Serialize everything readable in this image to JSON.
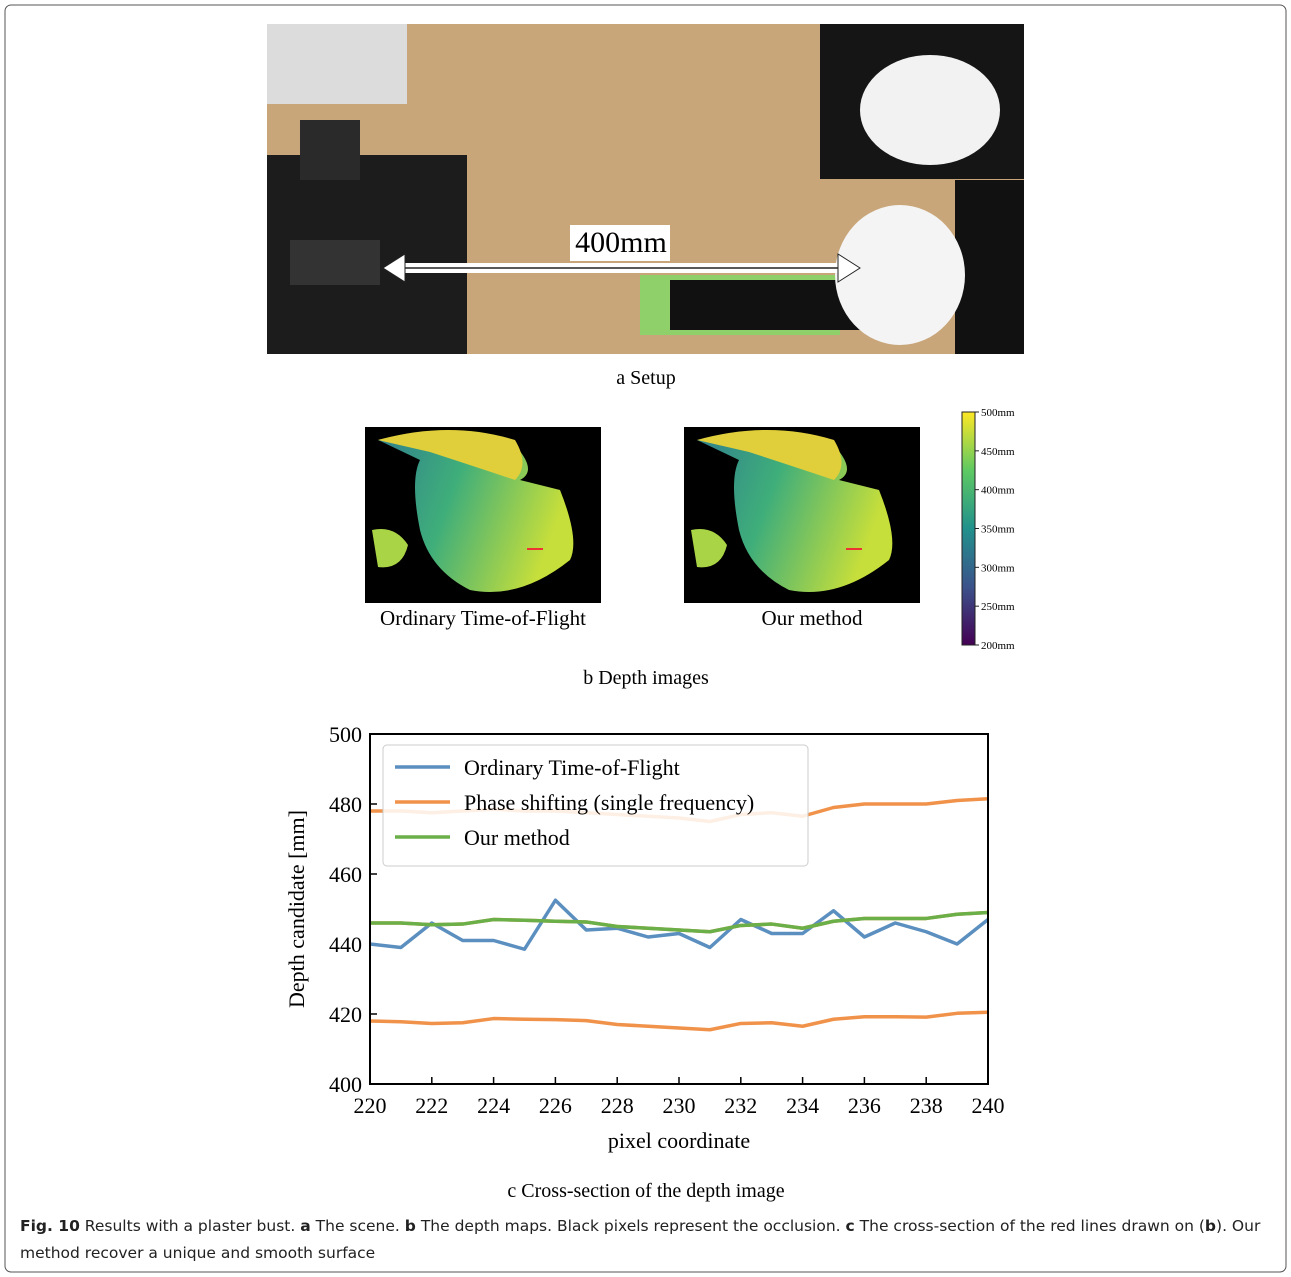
{
  "setup": {
    "distance_label": "400mm",
    "caption": "a Setup"
  },
  "depth_images": {
    "labels": [
      "Ordinary Time-of-Flight",
      "Our method"
    ],
    "caption": "b Depth images",
    "colorbar": {
      "lim": [
        200,
        500
      ],
      "ticks": [
        {
          "value": 200,
          "label": "200mm"
        },
        {
          "value": 250,
          "label": "250mm"
        },
        {
          "value": 300,
          "label": "300mm"
        },
        {
          "value": 350,
          "label": "350mm"
        },
        {
          "value": 400,
          "label": "400mm"
        },
        {
          "value": 450,
          "label": "450mm"
        },
        {
          "value": 500,
          "label": "500mm"
        }
      ]
    }
  },
  "chart_data": {
    "type": "line",
    "caption": "c Cross-section of the depth image",
    "x_label": "pixel coordinate",
    "y_label": "Depth candidate [mm]",
    "x": [
      220,
      221,
      222,
      223,
      224,
      225,
      226,
      227,
      228,
      229,
      230,
      231,
      232,
      233,
      234,
      235,
      236,
      237,
      238,
      239,
      240
    ],
    "series": [
      {
        "name": "Ordinary Time-of-Flight",
        "color": "#5b8fbf",
        "values": [
          440,
          439,
          446,
          441,
          441,
          438.5,
          452.5,
          444,
          444.5,
          442,
          443,
          439,
          447,
          443,
          443,
          449.5,
          442,
          446,
          443.5,
          440,
          447
        ]
      },
      {
        "name": "Phase shifting (single frequency)",
        "color": "#f0924a",
        "values": [
          478,
          478,
          477.5,
          478,
          478.5,
          478,
          478,
          477.5,
          477,
          476.5,
          476,
          475,
          477,
          477.5,
          476.5,
          479,
          480,
          480,
          480,
          481,
          481.5
        ]
      },
      {
        "name": "Phase shifting (single frequency)",
        "color": "#f0924a",
        "values": [
          446,
          446,
          445.5,
          445.7,
          447,
          446.8,
          446.5,
          446.3,
          445,
          444.5,
          444,
          443.5,
          445.3,
          445.7,
          444.5,
          446.5,
          447.3,
          447.3,
          447.3,
          448.5,
          449
        ]
      },
      {
        "name": "Phase shifting (single frequency)",
        "color": "#f0924a",
        "values": [
          418,
          417.8,
          417.3,
          417.5,
          418.7,
          418.5,
          418.4,
          418.1,
          417,
          416.5,
          416,
          415.5,
          417.3,
          417.5,
          416.5,
          418.5,
          419.2,
          419.2,
          419.1,
          420.2,
          420.5
        ]
      },
      {
        "name": "Our method",
        "color": "#6aaf48",
        "values": [
          446,
          446,
          445.5,
          445.7,
          447,
          446.8,
          446.5,
          446.3,
          445,
          444.5,
          444,
          443.5,
          445.3,
          445.7,
          444.5,
          446.5,
          447.3,
          447.3,
          447.3,
          448.5,
          449
        ]
      }
    ],
    "xlim": [
      220,
      240
    ],
    "ylim": [
      400,
      500
    ],
    "xticks": [
      220,
      222,
      224,
      226,
      228,
      230,
      232,
      234,
      236,
      238,
      240
    ],
    "yticks": [
      400,
      420,
      440,
      460,
      480,
      500
    ],
    "legend": "upper left"
  },
  "figure_caption": [
    "Fig. 10",
    "Results with a plaster bust.",
    "a",
    "The scene.",
    "b",
    "The depth maps. Black pixels represent the occlusion.",
    "c",
    "The cross-section of the red lines drawn on (",
    "b",
    "). Our method recover a unique and smooth surface"
  ]
}
